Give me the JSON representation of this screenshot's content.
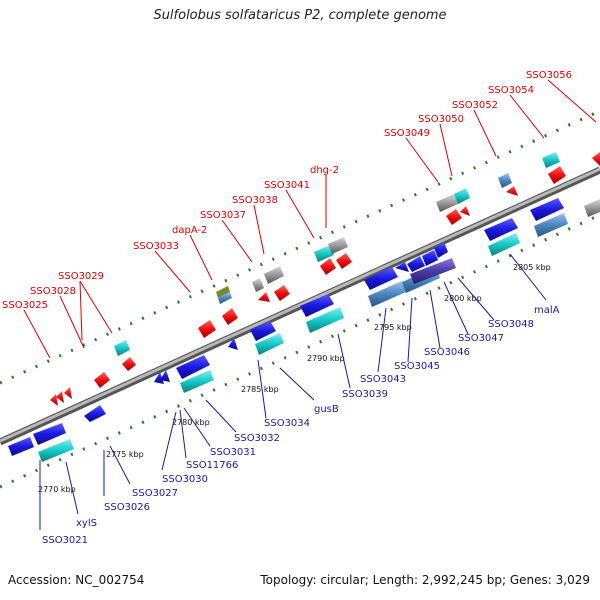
{
  "title": "Sulfolobus solfataricus P2, complete genome",
  "footer": {
    "accession": "Accession: NC_002754",
    "summary": "Topology: circular; Length: 2,992,245 bp; Genes: 3,029"
  },
  "colors": {
    "red_gene": "#ee1111",
    "blue_gene": "#1a1ae0",
    "cyan_gene": "#16c8c8",
    "steel_gene": "#4a86c0",
    "grey_gene": "#888888",
    "label_top": "#dd0000",
    "label_bottom": "#1a1aa0",
    "backbone": "#888888",
    "ticks": "#2a7a2a"
  },
  "scale_labels": [
    "2770 kbp",
    "2775 kbp",
    "2780 kbp",
    "2785 kbp",
    "2790 kbp",
    "2795 kbp",
    "2800 kbp",
    "2805 kbp"
  ],
  "top_labels": [
    "SSO3025",
    "SSO3028",
    "SSO3029",
    "SSO3033",
    "dapA-2",
    "SSO3037",
    "SSO3038",
    "SSO3041",
    "dhg-2",
    "SSO3049",
    "SSO3050",
    "SSO3052",
    "SSO3054",
    "SSO3056"
  ],
  "bottom_labels": [
    "SSO3021",
    "xylS",
    "SSO3026",
    "SSO3027",
    "SSO3030",
    "SSO11766",
    "SSO3031",
    "SSO3032",
    "SSO3034",
    "gusB",
    "SSO3039",
    "SSO3043",
    "SSO3045",
    "SSO3046",
    "SSO3047",
    "SSO3048",
    "malA"
  ]
}
